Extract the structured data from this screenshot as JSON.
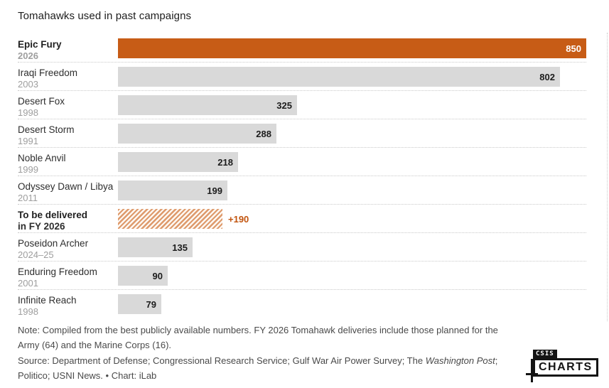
{
  "title": "Tomahawks used in past campaigns",
  "colors": {
    "accent_orange": "#C75C16",
    "hatch_orange": "#DE9A6C",
    "value_orange": "#C2540E",
    "bar_gray": "#D9D9D9"
  },
  "chart_data": {
    "type": "bar",
    "orientation": "horizontal",
    "title": "Tomahawks used in past campaigns",
    "xlim": [
      0,
      850
    ],
    "grid": "dotted-row-separators",
    "rows": [
      {
        "name": "Epic Fury",
        "year": "2026",
        "value": 850,
        "display": "850",
        "style": "highlight",
        "bold": true
      },
      {
        "name": "Iraqi Freedom",
        "year": "2003",
        "value": 802,
        "display": "802",
        "style": "default"
      },
      {
        "name": "Desert Fox",
        "year": "1998",
        "value": 325,
        "display": "325",
        "style": "default"
      },
      {
        "name": "Desert Storm",
        "year": "1991",
        "value": 288,
        "display": "288",
        "style": "default"
      },
      {
        "name": "Noble Anvil",
        "year": "1999",
        "value": 218,
        "display": "218",
        "style": "default"
      },
      {
        "name": "Odyssey Dawn / Libya",
        "year": "2011",
        "value": 199,
        "display": "199",
        "style": "default"
      },
      {
        "name": "To be delivered",
        "year": "in FY 2026",
        "value": 190,
        "display": "+190",
        "style": "hatched",
        "bold": true,
        "year_is_label": true
      },
      {
        "name": "Poseidon Archer",
        "year": "2024–25",
        "value": 135,
        "display": "135",
        "style": "default"
      },
      {
        "name": "Enduring Freedom",
        "year": "2001",
        "value": 90,
        "display": "90",
        "style": "default"
      },
      {
        "name": "Infinite Reach",
        "year": "1998",
        "value": 79,
        "display": "79",
        "style": "default"
      }
    ]
  },
  "note": {
    "text": "Note: Compiled from the best publicly available numbers. FY 2026 Tomahawk deliveries include those planned for the Army (64) and the Marine Corps (16)."
  },
  "source": {
    "prefix": "Source: Department of Defense; Congressional Research Service; Gulf War Air Power Survey; The ",
    "italic": "Washington Post",
    "suffix": "; Politico; USNI News.  • Chart: iLab"
  },
  "logo": {
    "top": "CSIS",
    "bottom": "CHARTS"
  }
}
